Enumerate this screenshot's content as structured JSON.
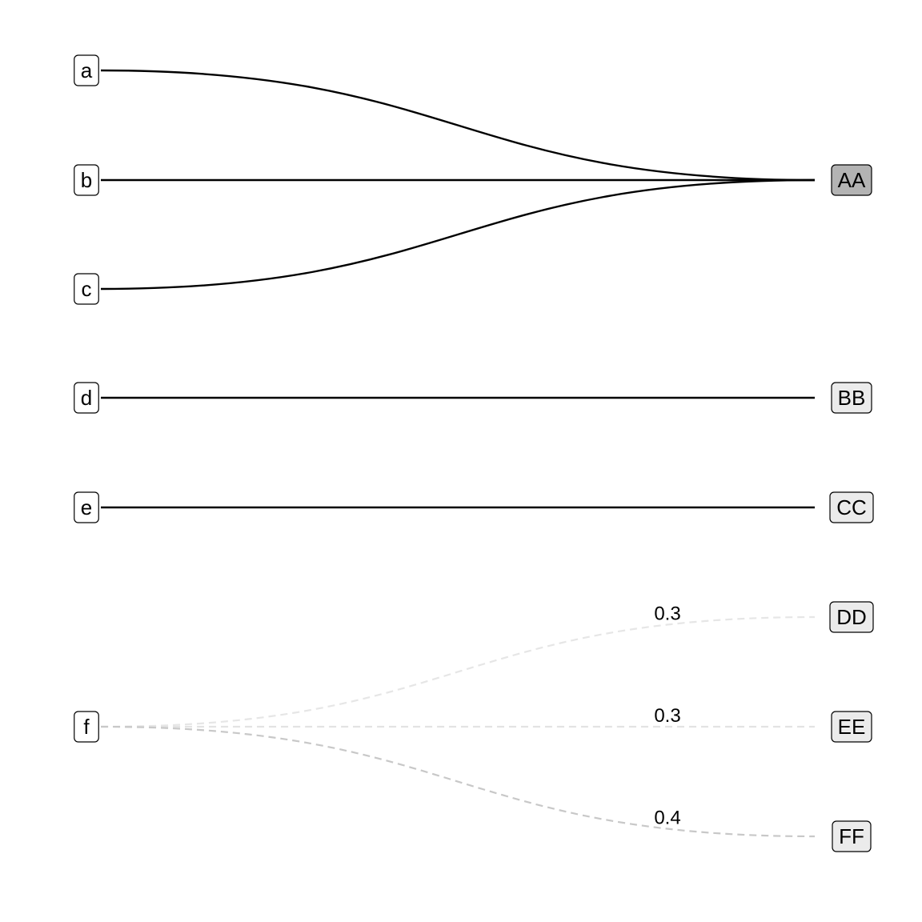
{
  "diagram": {
    "left_nodes": [
      {
        "id": "a",
        "label": "a"
      },
      {
        "id": "b",
        "label": "b"
      },
      {
        "id": "c",
        "label": "c"
      },
      {
        "id": "d",
        "label": "d"
      },
      {
        "id": "e",
        "label": "e"
      },
      {
        "id": "f",
        "label": "f"
      }
    ],
    "right_nodes": [
      {
        "id": "AA",
        "label": "AA",
        "fill": "#b3b3b3"
      },
      {
        "id": "BB",
        "label": "BB",
        "fill": "#ebebeb"
      },
      {
        "id": "CC",
        "label": "CC",
        "fill": "#ebebeb"
      },
      {
        "id": "DD",
        "label": "DD",
        "fill": "#ebebeb"
      },
      {
        "id": "EE",
        "label": "EE",
        "fill": "#ebebeb"
      },
      {
        "id": "FF",
        "label": "FF",
        "fill": "#ebebeb"
      }
    ],
    "edges": [
      {
        "from": "a",
        "to": "AA",
        "style": "solid",
        "color": "#000000",
        "label": ""
      },
      {
        "from": "b",
        "to": "AA",
        "style": "solid",
        "color": "#000000",
        "label": ""
      },
      {
        "from": "c",
        "to": "AA",
        "style": "solid",
        "color": "#000000",
        "label": ""
      },
      {
        "from": "d",
        "to": "BB",
        "style": "solid",
        "color": "#000000",
        "label": ""
      },
      {
        "from": "e",
        "to": "CC",
        "style": "solid",
        "color": "#000000",
        "label": ""
      },
      {
        "from": "f",
        "to": "DD",
        "style": "dashed",
        "color": "#e6e6e6",
        "label": "0.3"
      },
      {
        "from": "f",
        "to": "EE",
        "style": "dashed",
        "color": "#e3e3e3",
        "label": "0.3"
      },
      {
        "from": "f",
        "to": "FF",
        "style": "dashed",
        "color": "#c8c8c8",
        "label": "0.4"
      }
    ]
  }
}
